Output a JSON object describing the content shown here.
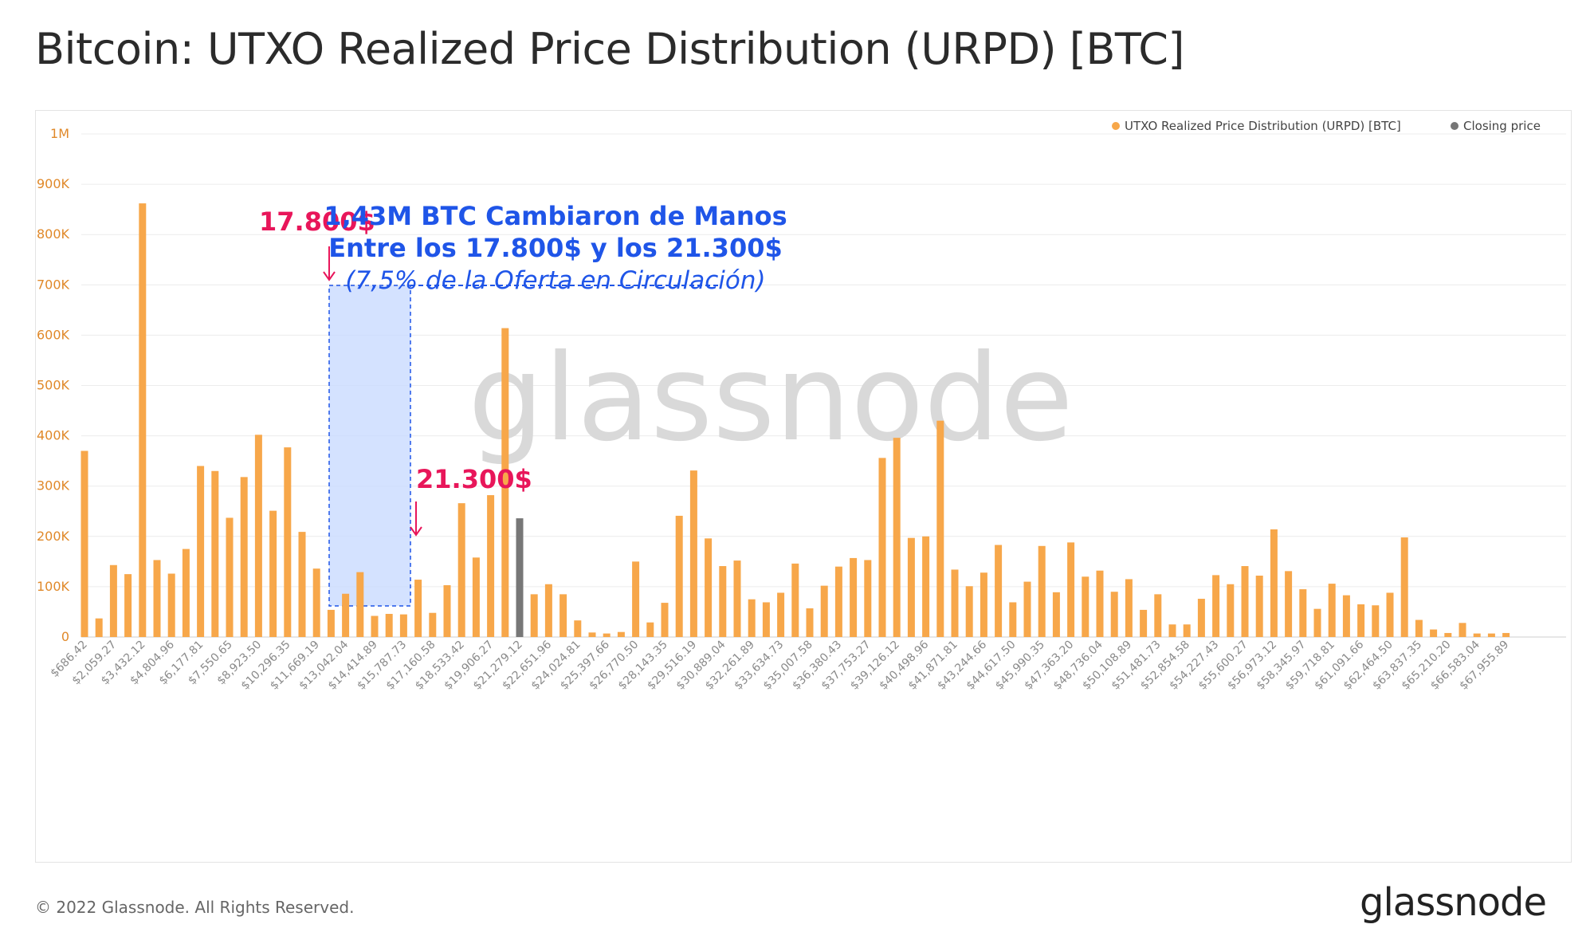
{
  "page": {
    "title": "Bitcoin: UTXO Realized Price Distribution (URPD) [BTC]",
    "copyright": "© 2022 Glassnode. All Rights Reserved.",
    "logo_text": "glassnode",
    "watermark": "glassnode"
  },
  "colors": {
    "bar": "#f7a74a",
    "closing_bar": "#777777",
    "highlight_fill": "#c9dbff",
    "highlight_border": "#1f55e8",
    "annotation_red": "#e8165a",
    "annotation_blue": "#1f55e8"
  },
  "annotations": {
    "left_price": "17.800$",
    "right_price": "21.300$",
    "headline_1": "1,43M BTC Cambiaron de Manos",
    "headline_2": "Entre los 17.800$ y los 21.300$",
    "headline_3": "(7,5% de la Oferta en Circulación)"
  },
  "chart_data": {
    "type": "bar",
    "title": "Bitcoin: UTXO Realized Price Distribution (URPD) [BTC]",
    "xlabel": "",
    "ylabel": "",
    "ylim": [
      0,
      1000000
    ],
    "yticks": [
      "0",
      "100K",
      "200K",
      "300K",
      "400K",
      "500K",
      "600K",
      "700K",
      "800K",
      "900K",
      "1M"
    ],
    "grid": true,
    "legend_position": "top-right",
    "x_tick_labels": [
      "$686.42",
      "$2,059.27",
      "$3,432.12",
      "$4,804.96",
      "$6,177.81",
      "$7,550.65",
      "$8,923.50",
      "$10,296.35",
      "$11,669.19",
      "$13,042.04",
      "$14,414.89",
      "$15,787.73",
      "$17,160.58",
      "$18,533.42",
      "$19,906.27",
      "$21,279.12",
      "$22,651.96",
      "$24,024.81",
      "$25,397.66",
      "$26,770.50",
      "$28,143.35",
      "$29,516.19",
      "$30,889.04",
      "$32,261.89",
      "$33,634.73",
      "$35,007.58",
      "$36,380.43",
      "$37,753.27",
      "$39,126.12",
      "$40,498.96",
      "$41,871.81",
      "$43,244.66",
      "$44,617.50",
      "$45,990.35",
      "$47,363.20",
      "$48,736.04",
      "$50,108.89",
      "$51,481.73",
      "$52,854.58",
      "$54,227.43",
      "$55,600.27",
      "$56,973.12",
      "$58,345.97",
      "$59,718.81",
      "$61,091.66",
      "$62,464.50",
      "$63,837.35",
      "$65,210.20",
      "$66,583.04",
      "$67,955.89"
    ],
    "series": [
      {
        "name": "UTXO Realized Price Distribution (URPD) [BTC]",
        "color": "#f7a74a",
        "values": [
          370000,
          37000,
          143000,
          125000,
          862000,
          153000,
          126000,
          175000,
          340000,
          330000,
          237000,
          318000,
          402000,
          251000,
          377000,
          209000,
          136000,
          54000,
          86000,
          129000,
          42000,
          46000,
          45000,
          114000,
          48000,
          103000,
          266000,
          158000,
          282000,
          614000,
          0,
          85000,
          105000,
          85000,
          33000,
          9000,
          7000,
          10000,
          150000,
          29000,
          68000,
          241000,
          331000,
          196000,
          141000,
          152000,
          75000,
          69000,
          88000,
          146000,
          57000,
          102000,
          140000,
          157000,
          153000,
          356000,
          396000,
          197000,
          200000,
          430000,
          134000,
          101000,
          128000,
          183000,
          69000,
          110000,
          181000,
          89000,
          188000,
          120000,
          132000,
          90000,
          115000,
          54000,
          85000,
          25000,
          25000,
          76000,
          123000,
          105000,
          141000,
          122000,
          214000,
          131000,
          95000,
          56000,
          106000,
          83000,
          65000,
          63000,
          88000,
          198000,
          34000,
          15000,
          8000,
          28000,
          7000,
          7000,
          8000
        ]
      },
      {
        "name": "Closing price",
        "color": "#777777",
        "bar_index": 30,
        "value": 236000
      }
    ]
  }
}
